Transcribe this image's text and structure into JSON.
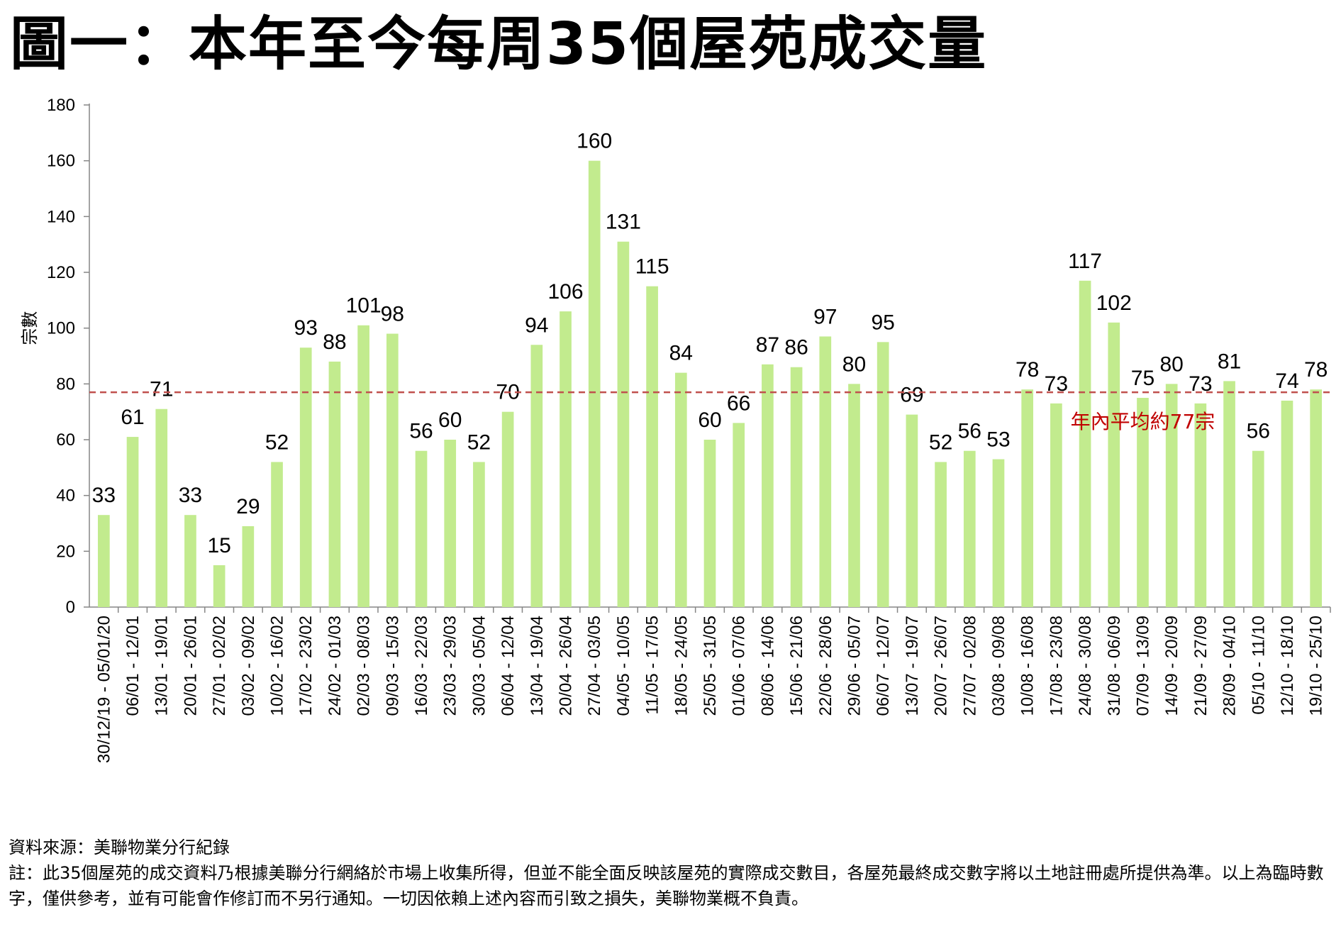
{
  "title": "圖一：本年至今每周35個屋苑成交量",
  "chart_data": {
    "type": "bar",
    "ylabel": "宗數",
    "ylim": [
      0,
      180
    ],
    "yticks": [
      0,
      20,
      40,
      60,
      80,
      100,
      120,
      140,
      160,
      180
    ],
    "categories": [
      "30/12/19 - 05/01/20",
      "06/01 - 12/01",
      "13/01 - 19/01",
      "20/01 - 26/01",
      "27/01 - 02/02",
      "03/02 - 09/02",
      "10/02 - 16/02",
      "17/02 - 23/02",
      "24/02 - 01/03",
      "02/03 - 08/03",
      "09/03 - 15/03",
      "16/03 - 22/03",
      "23/03 - 29/03",
      "30/03 - 05/04",
      "06/04 - 12/04",
      "13/04 - 19/04",
      "20/04 - 26/04",
      "27/04 - 03/05",
      "04/05 - 10/05",
      "11/05 - 17/05",
      "18/05 - 24/05",
      "25/05 - 31/05",
      "01/06 - 07/06",
      "08/06 - 14/06",
      "15/06 - 21/06",
      "22/06 - 28/06",
      "29/06 - 05/07",
      "06/07 - 12/07",
      "13/07 - 19/07",
      "20/07 - 26/07",
      "27/07 - 02/08",
      "03/08 - 09/08",
      "10/08 - 16/08",
      "17/08 - 23/08",
      "24/08 - 30/08",
      "31/08 - 06/09",
      "07/09 - 13/09",
      "14/09 - 20/09",
      "21/09 - 27/09",
      "28/09 - 04/10",
      "05/10 - 11/10",
      "12/10 - 18/10",
      "19/10 - 25/10"
    ],
    "values": [
      33,
      61,
      71,
      33,
      15,
      29,
      52,
      93,
      88,
      101,
      98,
      56,
      60,
      52,
      70,
      94,
      106,
      160,
      131,
      115,
      84,
      60,
      66,
      87,
      86,
      97,
      80,
      95,
      69,
      52,
      56,
      53,
      78,
      73,
      117,
      102,
      75,
      80,
      73,
      81,
      56,
      74,
      78
    ],
    "average": {
      "value": 77,
      "label": "年內平均約77宗"
    },
    "bar_color": "#c2eb8e",
    "average_line_color": "#c0504d",
    "average_text_color": "#c00000",
    "grid": false
  },
  "footer": {
    "source": "資料來源：美聯物業分行紀錄",
    "note": "註：此35個屋苑的成交資料乃根據美聯分行網絡於市場上收集所得，但並不能全面反映該屋苑的實際成交數目，各屋苑最終成交數字將以土地註冊處所提供為準。以上為臨時數字，僅供參考，並有可能會作修訂而不另行通知。一切因依賴上述內容而引致之損失，美聯物業概不負責。"
  }
}
